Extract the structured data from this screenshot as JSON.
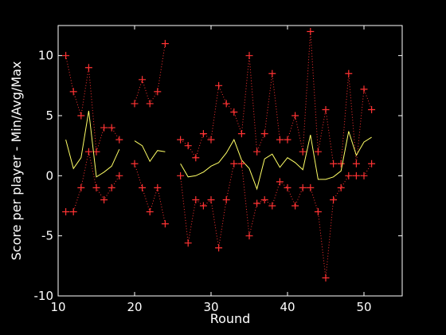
{
  "chart_data": {
    "type": "line",
    "xlabel": "Round",
    "ylabel": "Score per player - Min/Avg/Max",
    "xlim": [
      10,
      55
    ],
    "ylim": [
      -10,
      12.5
    ],
    "xticks": [
      10,
      20,
      30,
      40,
      50
    ],
    "yticks": [
      -10,
      -5,
      0,
      5,
      10
    ],
    "grid": false,
    "background": "#000000",
    "axis_color": "#ffffff",
    "x": [
      11,
      12,
      13,
      14,
      15,
      16,
      17,
      18,
      19,
      20,
      21,
      22,
      23,
      24,
      25,
      26,
      27,
      28,
      29,
      30,
      31,
      32,
      33,
      34,
      35,
      36,
      37,
      38,
      39,
      40,
      41,
      42,
      43,
      44,
      45,
      46,
      47,
      48,
      49,
      50,
      51
    ],
    "series": [
      {
        "role": "max",
        "color": "#ff3333",
        "line": "dotted",
        "marker": "+",
        "values": [
          10,
          7,
          5,
          9,
          2,
          4,
          4,
          3,
          null,
          6,
          8,
          6,
          7,
          11,
          null,
          3,
          2.5,
          1.5,
          3.5,
          3,
          7.5,
          6,
          5.3,
          3.5,
          10,
          2,
          3.5,
          8.5,
          3,
          3,
          5,
          2,
          12,
          2,
          5.5,
          1,
          1,
          8.5,
          1,
          7.2,
          5.5
        ]
      },
      {
        "role": "avg",
        "color": "#ffff66",
        "line": "solid",
        "marker": "",
        "values": [
          3,
          0.6,
          1.5,
          5.4,
          -0.1,
          0.3,
          0.8,
          2.2,
          null,
          2.9,
          2.5,
          1.2,
          2.1,
          2,
          null,
          1,
          -0.1,
          0,
          0.3,
          0.8,
          1.1,
          1.9,
          3,
          1.3,
          0.6,
          -1.1,
          1.4,
          1.8,
          0.7,
          1.5,
          1.1,
          0.5,
          3.4,
          -0.3,
          -0.3,
          -0.1,
          0.4,
          3.7,
          1.7,
          2.8,
          3.2
        ]
      },
      {
        "role": "min",
        "color": "#ff3333",
        "line": "dotted",
        "marker": "+",
        "values": [
          -3,
          -3,
          -1,
          2,
          -1,
          -2,
          -1,
          0,
          null,
          1,
          -1,
          -3,
          -1,
          -4,
          null,
          0,
          -5.6,
          -2,
          -2.5,
          -2,
          -6,
          -2,
          1,
          1,
          -5,
          -2.3,
          -2,
          -2.5,
          -0.5,
          -1,
          -2.5,
          -1,
          -1,
          -3,
          -8.5,
          -2,
          -1,
          0,
          0,
          0,
          1
        ]
      }
    ]
  }
}
